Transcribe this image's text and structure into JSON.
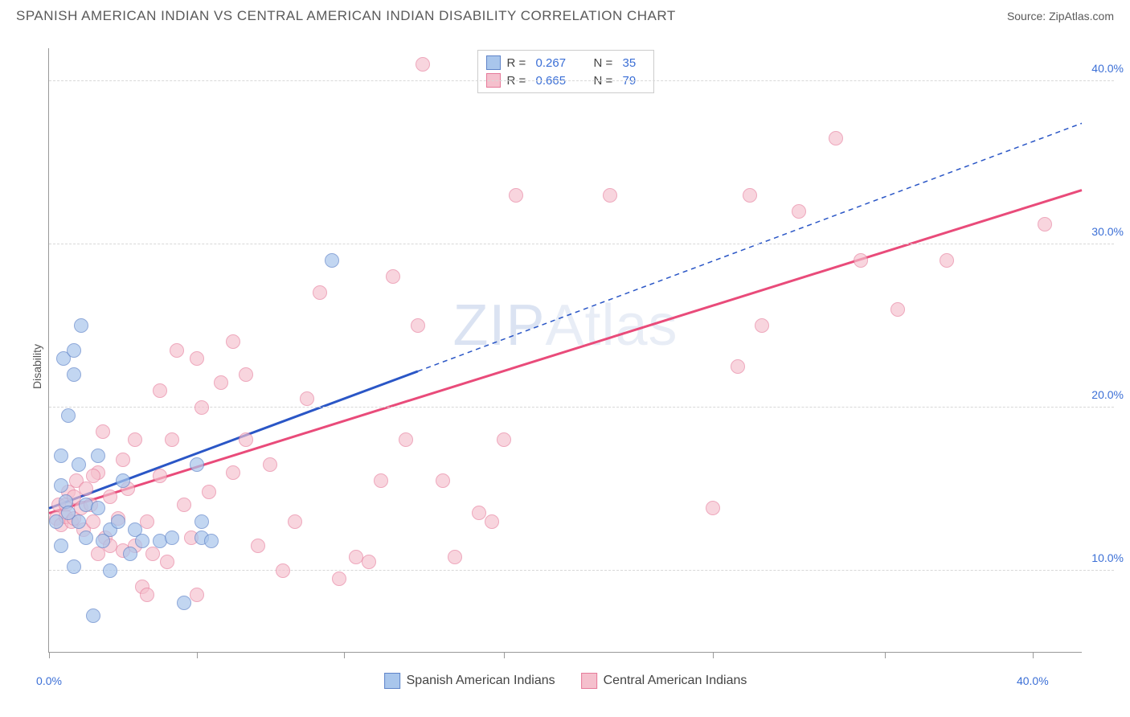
{
  "header": {
    "title": "SPANISH AMERICAN INDIAN VS CENTRAL AMERICAN INDIAN DISABILITY CORRELATION CHART",
    "source": "Source: ZipAtlas.com"
  },
  "ylabel": "Disability",
  "watermark": {
    "part1": "ZIP",
    "part2": "Atlas"
  },
  "axes": {
    "xmin": 0,
    "xmax": 42,
    "ymin": 5,
    "ymax": 42,
    "x_ticks": [
      0,
      6,
      12,
      18.5,
      27,
      34,
      40
    ],
    "x_tick_labels": {
      "0": "0.0%",
      "40": "40.0%"
    },
    "y_grid": [
      10,
      20,
      30,
      40
    ],
    "y_tick_labels": {
      "10": "10.0%",
      "20": "20.0%",
      "30": "30.0%",
      "40": "40.0%"
    }
  },
  "series": {
    "spanish": {
      "label": "Spanish American Indians",
      "fill": "#a9c6ec",
      "stroke": "#5f84c9",
      "marker_opacity": 0.7,
      "marker_radius": 9,
      "r": "0.267",
      "n": "35",
      "trend": {
        "color": "#2a56c6",
        "width": 3,
        "x1": 0,
        "y1": 13.8,
        "x2_solid": 15,
        "y2_solid": 22.2,
        "x2": 42,
        "y2": 37.4
      },
      "points": [
        [
          0.3,
          13.0
        ],
        [
          0.5,
          15.2
        ],
        [
          0.5,
          17.0
        ],
        [
          0.5,
          11.5
        ],
        [
          0.6,
          23.0
        ],
        [
          0.7,
          14.2
        ],
        [
          0.8,
          19.5
        ],
        [
          0.8,
          13.5
        ],
        [
          1.0,
          10.2
        ],
        [
          1.0,
          22.0
        ],
        [
          1.0,
          23.5
        ],
        [
          1.2,
          16.5
        ],
        [
          1.2,
          13.0
        ],
        [
          1.3,
          25.0
        ],
        [
          1.5,
          12.0
        ],
        [
          1.5,
          14.0
        ],
        [
          1.8,
          7.2
        ],
        [
          2.0,
          13.8
        ],
        [
          2.0,
          17.0
        ],
        [
          2.2,
          11.8
        ],
        [
          2.5,
          12.5
        ],
        [
          2.5,
          10.0
        ],
        [
          2.8,
          13.0
        ],
        [
          3.0,
          15.5
        ],
        [
          3.3,
          11.0
        ],
        [
          3.5,
          12.5
        ],
        [
          3.8,
          11.8
        ],
        [
          4.5,
          11.8
        ],
        [
          5.0,
          12.0
        ],
        [
          5.5,
          8.0
        ],
        [
          6.2,
          12.0
        ],
        [
          6.2,
          13.0
        ],
        [
          6.6,
          11.8
        ],
        [
          11.5,
          29.0
        ],
        [
          6.0,
          16.5
        ]
      ]
    },
    "central": {
      "label": "Central American Indians",
      "fill": "#f5c0cd",
      "stroke": "#e67a9a",
      "marker_opacity": 0.65,
      "marker_radius": 9,
      "r": "0.665",
      "n": "79",
      "trend": {
        "color": "#e94b7a",
        "width": 3,
        "x1": 0,
        "y1": 13.5,
        "x2": 42,
        "y2": 33.3
      },
      "points": [
        [
          0.3,
          13.2
        ],
        [
          0.4,
          14.0
        ],
        [
          0.5,
          12.8
        ],
        [
          0.7,
          14.0
        ],
        [
          0.7,
          13.3
        ],
        [
          0.8,
          14.8
        ],
        [
          0.9,
          13.0
        ],
        [
          1.0,
          14.5
        ],
        [
          1.0,
          13.2
        ],
        [
          1.1,
          15.5
        ],
        [
          1.3,
          13.8
        ],
        [
          1.4,
          12.5
        ],
        [
          1.5,
          15.0
        ],
        [
          1.7,
          14.0
        ],
        [
          1.8,
          13.0
        ],
        [
          2.0,
          16.0
        ],
        [
          2.0,
          11.0
        ],
        [
          2.2,
          18.5
        ],
        [
          2.3,
          12.0
        ],
        [
          2.5,
          14.5
        ],
        [
          2.8,
          13.2
        ],
        [
          3.0,
          11.2
        ],
        [
          3.2,
          15.0
        ],
        [
          3.5,
          11.5
        ],
        [
          3.5,
          18.0
        ],
        [
          3.8,
          9.0
        ],
        [
          4.0,
          13.0
        ],
        [
          4.0,
          8.5
        ],
        [
          4.2,
          11.0
        ],
        [
          4.5,
          15.8
        ],
        [
          4.8,
          10.5
        ],
        [
          5.2,
          23.5
        ],
        [
          5.5,
          14.0
        ],
        [
          5.8,
          12.0
        ],
        [
          6.0,
          23.0
        ],
        [
          6.2,
          20.0
        ],
        [
          6.5,
          14.8
        ],
        [
          7.0,
          21.5
        ],
        [
          7.5,
          16.0
        ],
        [
          7.5,
          24.0
        ],
        [
          8.0,
          22.0
        ],
        [
          8.5,
          11.5
        ],
        [
          9.0,
          16.5
        ],
        [
          9.5,
          10.0
        ],
        [
          10.0,
          13.0
        ],
        [
          10.5,
          20.5
        ],
        [
          11.0,
          27.0
        ],
        [
          11.8,
          9.5
        ],
        [
          12.5,
          10.8
        ],
        [
          13.0,
          10.5
        ],
        [
          13.5,
          15.5
        ],
        [
          14.0,
          28.0
        ],
        [
          14.5,
          18.0
        ],
        [
          15.0,
          25.0
        ],
        [
          15.2,
          41.0
        ],
        [
          16.0,
          15.5
        ],
        [
          16.5,
          10.8
        ],
        [
          17.5,
          13.5
        ],
        [
          18.0,
          13.0
        ],
        [
          18.5,
          18.0
        ],
        [
          19.0,
          33.0
        ],
        [
          22.8,
          33.0
        ],
        [
          27.0,
          13.8
        ],
        [
          28.0,
          22.5
        ],
        [
          28.5,
          33.0
        ],
        [
          29.0,
          25.0
        ],
        [
          30.5,
          32.0
        ],
        [
          32.0,
          36.5
        ],
        [
          33.0,
          29.0
        ],
        [
          34.5,
          26.0
        ],
        [
          36.5,
          29.0
        ],
        [
          40.5,
          31.2
        ],
        [
          5.0,
          18.0
        ],
        [
          6.0,
          8.5
        ],
        [
          4.5,
          21.0
        ],
        [
          3.0,
          16.8
        ],
        [
          2.5,
          11.5
        ],
        [
          1.8,
          15.8
        ],
        [
          8.0,
          18.0
        ]
      ]
    }
  },
  "legend_top": [
    {
      "series": "spanish",
      "r_label": "R =",
      "n_label": "N ="
    },
    {
      "series": "central",
      "r_label": "R =",
      "n_label": "N ="
    }
  ],
  "colors": {
    "grid": "#d8d8d8",
    "axis": "#999999",
    "tick_text": "#3b6fd6",
    "title_text": "#5a5a5a"
  }
}
